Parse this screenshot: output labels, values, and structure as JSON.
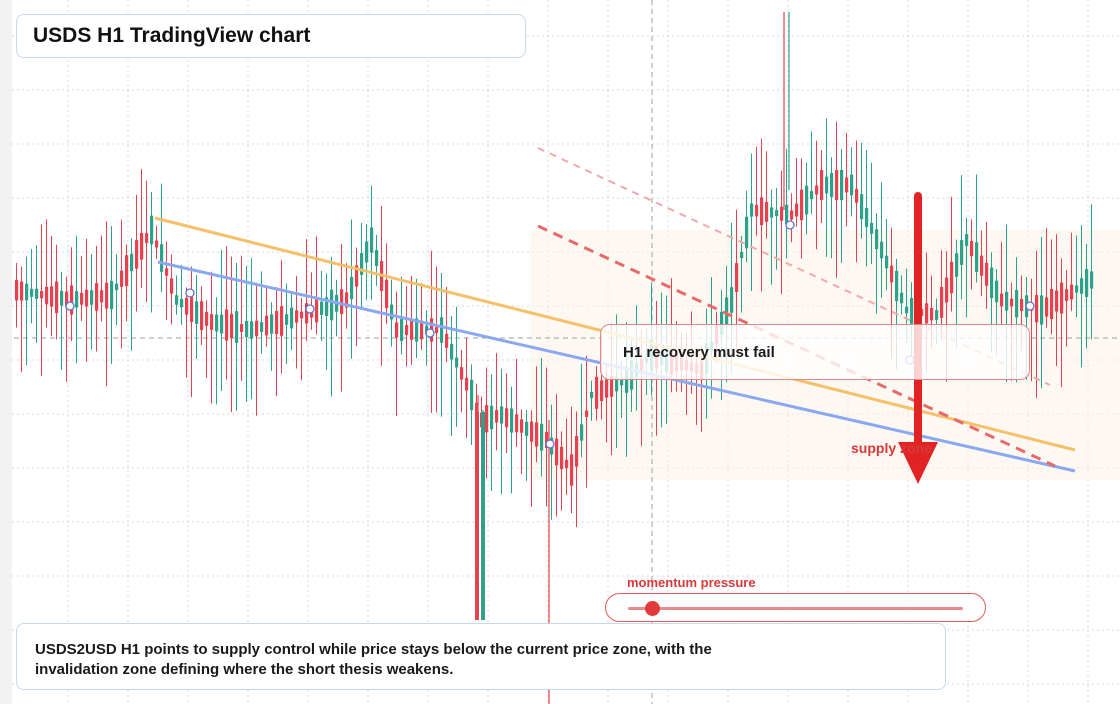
{
  "title": "USDS H1 TradingView chart",
  "annotation": "H1 recovery must fail",
  "supply_label": "supply zone",
  "momentum": {
    "label": "momentum pressure",
    "level": 0.07
  },
  "description": "USDS2USD H1 points to supply control while price stays below the current price zone, with the invalidation zone defining where the short thesis weakens.",
  "colors": {
    "bull": "#2aa38a",
    "bear": "#e8404e",
    "resistance": "#f6c06a",
    "support": "#8aa8f0",
    "channel": "#e66a6a",
    "arrow": "#e02424"
  },
  "icons": {
    "direction": "down-arrow-icon"
  }
}
